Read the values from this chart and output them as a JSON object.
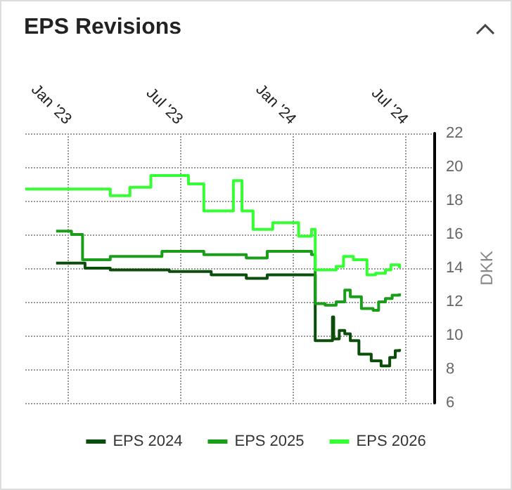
{
  "chart_data": {
    "type": "step",
    "title": "EPS Revisions",
    "ylabel": "DKK",
    "xlim": [
      "2022-10-23",
      "2024-08-18"
    ],
    "xticks": [
      {
        "value": "2023-01-01",
        "label": "Jan '23"
      },
      {
        "value": "2023-07-01",
        "label": "Jul '23"
      },
      {
        "value": "2024-01-01",
        "label": "Jan '24"
      },
      {
        "value": "2024-07-01",
        "label": "Jul '24"
      }
    ],
    "ylim": [
      6,
      22
    ],
    "yticks": [
      6,
      8,
      10,
      12,
      14,
      16,
      18,
      20,
      22
    ],
    "grid": true,
    "legend": "bottom",
    "line_style": "solid",
    "marker": "none",
    "series": [
      {
        "name": "EPS 2024",
        "color": "#0b4d0b",
        "x": [
          "2022-12-12",
          "2023-01-28",
          "2023-03-10",
          "2023-06-14",
          "2023-08-21",
          "2023-10-17",
          "2023-11-20",
          "2024-01-31",
          "2024-02-06",
          "2024-03-05",
          "2024-03-07",
          "2024-03-16",
          "2024-03-25",
          "2024-04-03",
          "2024-04-17",
          "2024-05-07",
          "2024-05-23",
          "2024-06-06",
          "2024-06-15",
          "2024-06-22"
        ],
        "values": [
          14.3,
          14.0,
          13.9,
          13.8,
          13.6,
          13.4,
          13.6,
          13.6,
          9.7,
          11.1,
          9.8,
          10.3,
          10.1,
          9.7,
          8.9,
          8.5,
          8.2,
          8.7,
          9.1,
          9.2
        ]
      },
      {
        "name": "EPS 2025",
        "color": "#1a9e1a",
        "x": [
          "2022-12-12",
          "2023-01-06",
          "2023-01-24",
          "2023-03-10",
          "2023-06-02",
          "2023-08-09",
          "2023-10-17",
          "2023-11-20",
          "2024-01-04",
          "2024-01-31",
          "2024-02-06",
          "2024-02-22",
          "2024-03-11",
          "2024-03-25",
          "2024-04-03",
          "2024-04-21",
          "2024-05-10",
          "2024-05-19",
          "2024-05-30",
          "2024-06-10",
          "2024-06-22"
        ],
        "values": [
          16.2,
          16.0,
          14.5,
          14.7,
          15.0,
          14.8,
          14.6,
          15.0,
          15.0,
          14.8,
          11.9,
          11.8,
          12.0,
          12.7,
          12.3,
          11.6,
          11.5,
          12.0,
          12.2,
          12.4,
          12.5
        ]
      },
      {
        "name": "EPS 2026",
        "color": "#33ff33",
        "x": [
          "2022-10-23",
          "2023-01-01",
          "2023-03-10",
          "2023-04-11",
          "2023-05-15",
          "2023-07-15",
          "2023-08-09",
          "2023-09-26",
          "2023-10-10",
          "2023-10-28",
          "2023-11-29",
          "2024-01-10",
          "2024-01-31",
          "2024-02-06",
          "2024-03-11",
          "2024-03-23",
          "2024-04-08",
          "2024-04-30",
          "2024-05-14",
          "2024-05-30",
          "2024-06-08",
          "2024-06-22"
        ],
        "values": [
          18.7,
          18.7,
          18.3,
          18.8,
          19.5,
          19.0,
          17.4,
          19.2,
          17.4,
          16.3,
          16.7,
          15.9,
          16.3,
          13.9,
          14.1,
          14.7,
          14.5,
          13.6,
          13.7,
          13.9,
          14.2,
          14.0
        ]
      }
    ]
  }
}
